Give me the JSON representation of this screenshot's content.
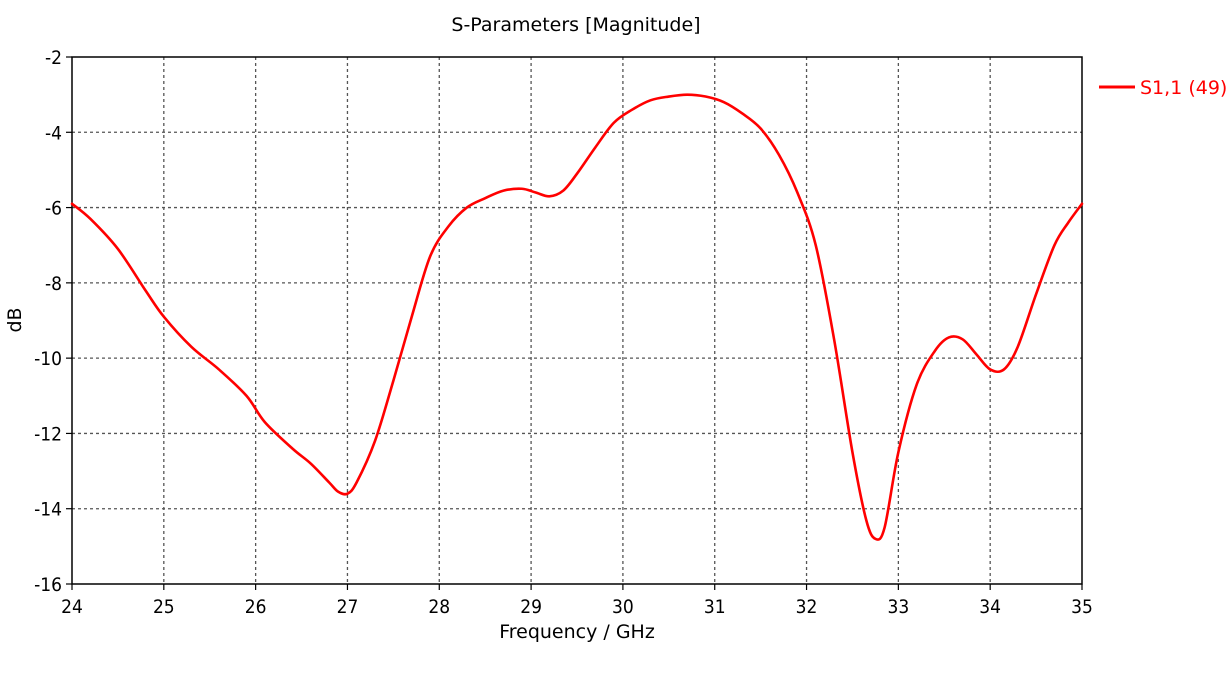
{
  "chart_data": {
    "type": "line",
    "title": "S-Parameters [Magnitude]",
    "xlabel": "Frequency / GHz",
    "ylabel": "dB",
    "xlim": [
      24,
      35
    ],
    "ylim": [
      -16,
      -2
    ],
    "xticks": [
      24,
      25,
      26,
      27,
      28,
      29,
      30,
      31,
      32,
      33,
      34,
      35
    ],
    "yticks": [
      -16,
      -14,
      -12,
      -10,
      -8,
      -6,
      -4,
      -2
    ],
    "grid": true,
    "legend_position": "top-right",
    "series": [
      {
        "name": "S1,1 (49)",
        "color": "#ff0000",
        "x": [
          24.0,
          24.2,
          24.5,
          24.8,
          25.0,
          25.3,
          25.6,
          25.9,
          26.1,
          26.4,
          26.6,
          26.8,
          26.9,
          27.0,
          27.1,
          27.3,
          27.5,
          27.7,
          27.9,
          28.1,
          28.3,
          28.5,
          28.7,
          28.9,
          29.05,
          29.2,
          29.35,
          29.5,
          29.7,
          29.9,
          30.1,
          30.3,
          30.5,
          30.7,
          30.9,
          31.1,
          31.3,
          31.5,
          31.7,
          31.9,
          32.1,
          32.3,
          32.5,
          32.65,
          32.75,
          32.85,
          33.0,
          33.2,
          33.4,
          33.55,
          33.7,
          33.85,
          34.0,
          34.15,
          34.3,
          34.5,
          34.7,
          34.85,
          35.0
        ],
        "y": [
          -5.9,
          -6.3,
          -7.1,
          -8.2,
          -8.9,
          -9.7,
          -10.3,
          -11.0,
          -11.7,
          -12.4,
          -12.8,
          -13.3,
          -13.55,
          -13.6,
          -13.3,
          -12.2,
          -10.6,
          -8.9,
          -7.3,
          -6.5,
          -6.0,
          -5.75,
          -5.55,
          -5.5,
          -5.6,
          -5.7,
          -5.55,
          -5.1,
          -4.4,
          -3.75,
          -3.4,
          -3.15,
          -3.05,
          -3.0,
          -3.05,
          -3.2,
          -3.5,
          -3.9,
          -4.6,
          -5.6,
          -7.0,
          -9.5,
          -12.5,
          -14.3,
          -14.8,
          -14.5,
          -12.5,
          -10.7,
          -9.8,
          -9.45,
          -9.5,
          -9.9,
          -10.3,
          -10.3,
          -9.7,
          -8.3,
          -7.0,
          -6.4,
          -5.9
        ]
      }
    ]
  }
}
